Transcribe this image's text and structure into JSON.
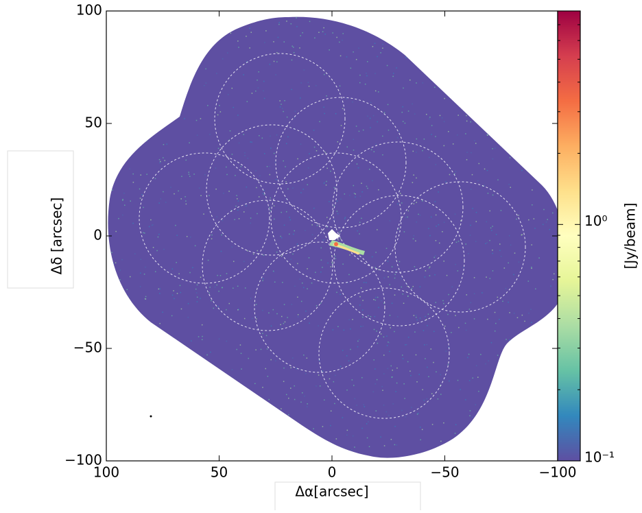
{
  "chart_data": {
    "type": "image",
    "xlabel": "Δα[arcsec]",
    "ylabel": "Δδ [arcsec]",
    "colorbar_label": "[Jy/beam]",
    "xlim": [
      100,
      -100
    ],
    "ylim": [
      -100,
      100
    ],
    "xticks": [
      100,
      50,
      0,
      {
        "value": -50,
        "label": "−50"
      },
      {
        "value": -100,
        "label": "−100"
      }
    ],
    "yticks": [
      {
        "value": -100,
        "label": "−100"
      },
      {
        "value": -50,
        "label": "−50"
      },
      0,
      50,
      100
    ],
    "color_scale": "log",
    "clim": [
      0.1,
      8
    ],
    "cbar_ticks": [
      {
        "value": 0.1,
        "label": "10⁻¹"
      },
      {
        "value": 1,
        "label": "10⁰"
      }
    ],
    "cbar_minor_ticks": [
      0.2,
      0.3,
      0.4,
      0.5,
      0.6,
      0.7,
      0.8,
      0.9,
      2,
      3,
      4,
      5,
      6,
      7
    ]
  }
}
